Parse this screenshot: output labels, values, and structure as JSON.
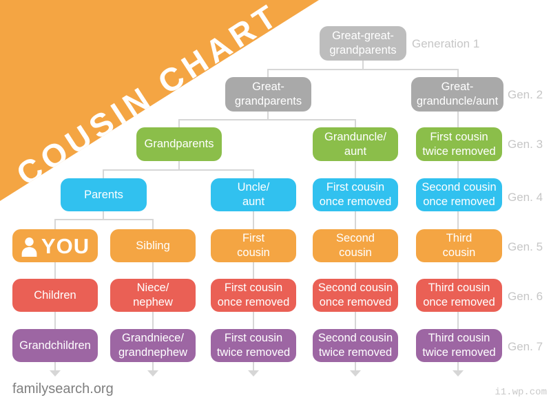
{
  "banner": {
    "title": "COUSIN CHART",
    "background": "#F4A543",
    "text_color": "#FFFFFF"
  },
  "generation_labels": [
    "Generation 1",
    "Gen. 2",
    "Gen. 3",
    "Gen. 4",
    "Gen. 5",
    "Gen. 6",
    "Gen. 7"
  ],
  "footer": {
    "source": "familysearch.org",
    "watermark": "i1.wp.com"
  },
  "colors": {
    "gen1_gray": "#BDBDBD",
    "gray": "#A9A9A9",
    "green": "#8BBE4A",
    "blue": "#31C1EF",
    "orange": "#F4A543",
    "red": "#EA6055",
    "purple": "#9D66A3",
    "line": "#D6D6D6",
    "label": "#C6C6C6"
  },
  "nodes": [
    {
      "id": "great-great-grandparents",
      "label": "Great-great-\ngrandparents",
      "color": "gen1_gray",
      "generation": 1
    },
    {
      "id": "great-grandparents",
      "label": "Great-\ngrandparents",
      "color": "gray",
      "generation": 2
    },
    {
      "id": "great-granduncle-aunt",
      "label": "Great-\ngranduncle/aunt",
      "color": "gray",
      "generation": 2
    },
    {
      "id": "grandparents",
      "label": "Grandparents",
      "color": "green",
      "generation": 3
    },
    {
      "id": "granduncle-aunt",
      "label": "Granduncle/\naunt",
      "color": "green",
      "generation": 3
    },
    {
      "id": "first-cousin-twice-removed-gen3",
      "label": "First cousin\ntwice removed",
      "color": "green",
      "generation": 3
    },
    {
      "id": "parents",
      "label": "Parents",
      "color": "blue",
      "generation": 4
    },
    {
      "id": "uncle-aunt",
      "label": "Uncle/\naunt",
      "color": "blue",
      "generation": 4
    },
    {
      "id": "first-cousin-once-removed-gen4",
      "label": "First cousin\nonce removed",
      "color": "blue",
      "generation": 4
    },
    {
      "id": "second-cousin-once-removed-gen4",
      "label": "Second cousin\nonce removed",
      "color": "blue",
      "generation": 4
    },
    {
      "id": "you",
      "label": "YOU",
      "icon": "person-icon",
      "color": "orange",
      "generation": 5
    },
    {
      "id": "sibling",
      "label": "Sibling",
      "color": "orange",
      "generation": 5
    },
    {
      "id": "first-cousin",
      "label": "First\ncousin",
      "color": "orange",
      "generation": 5
    },
    {
      "id": "second-cousin",
      "label": "Second\ncousin",
      "color": "orange",
      "generation": 5
    },
    {
      "id": "third-cousin",
      "label": "Third\ncousin",
      "color": "orange",
      "generation": 5
    },
    {
      "id": "children",
      "label": "Children",
      "color": "red",
      "generation": 6
    },
    {
      "id": "niece-nephew",
      "label": "Niece/\nnephew",
      "color": "red",
      "generation": 6
    },
    {
      "id": "first-cousin-once-removed-gen6",
      "label": "First cousin\nonce removed",
      "color": "red",
      "generation": 6
    },
    {
      "id": "second-cousin-once-removed-gen6",
      "label": "Second cousin\nonce removed",
      "color": "red",
      "generation": 6
    },
    {
      "id": "third-cousin-once-removed",
      "label": "Third cousin\nonce removed",
      "color": "red",
      "generation": 6
    },
    {
      "id": "grandchildren",
      "label": "Grandchildren",
      "color": "purple",
      "generation": 7
    },
    {
      "id": "grandniece-grandnephew",
      "label": "Grandniece/\ngrandnephew",
      "color": "purple",
      "generation": 7
    },
    {
      "id": "first-cousin-twice-removed-gen7",
      "label": "First cousin\ntwice removed",
      "color": "purple",
      "generation": 7
    },
    {
      "id": "second-cousin-twice-removed",
      "label": "Second cousin\ntwice removed",
      "color": "purple",
      "generation": 7
    },
    {
      "id": "third-cousin-twice-removed",
      "label": "Third cousin\ntwice removed",
      "color": "purple",
      "generation": 7
    }
  ]
}
